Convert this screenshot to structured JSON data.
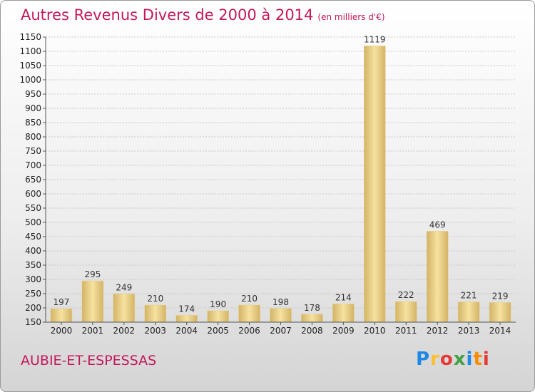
{
  "title": "Autres Revenus Divers de 2000 à 2014",
  "unit": "(en milliers d'€)",
  "commune": "AUBIE-ET-ESPESSAS",
  "logo": {
    "letters": [
      "P",
      "r",
      "o",
      "x",
      "i",
      "t",
      "i"
    ],
    "colors": [
      "#1e88e5",
      "#fbc02d",
      "#e53935",
      "#43a047",
      "#1e88e5",
      "#fb8c00",
      "#e53935"
    ]
  },
  "colors": {
    "title": "#c2185b",
    "bar_light": "#f6e2a0",
    "bar_dark": "#d3b366"
  },
  "chart_data": {
    "type": "bar",
    "categories": [
      "2000",
      "2001",
      "2002",
      "2003",
      "2004",
      "2005",
      "2006",
      "2007",
      "2008",
      "2009",
      "2010",
      "2011",
      "2012",
      "2013",
      "2014"
    ],
    "values": [
      197,
      295,
      249,
      210,
      174,
      190,
      210,
      198,
      178,
      214,
      1119,
      222,
      469,
      221,
      219
    ],
    "ylim": [
      150,
      1150
    ],
    "yticks": [
      150,
      200,
      250,
      300,
      350,
      400,
      450,
      500,
      550,
      600,
      650,
      700,
      750,
      800,
      850,
      900,
      950,
      1000,
      1050,
      1100,
      1150
    ],
    "grid": true,
    "legend": "none"
  }
}
